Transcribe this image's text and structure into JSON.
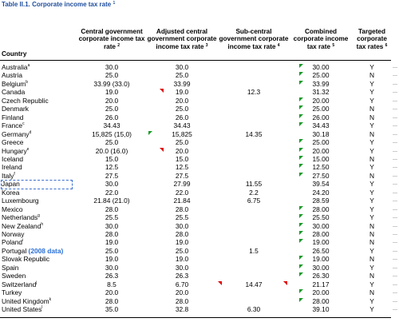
{
  "title": {
    "text": "Table II.1. Corporate income tax rate",
    "note": "1"
  },
  "columns": [
    {
      "text": "Country"
    },
    {
      "text": "Central government corporate income tax rate",
      "note": "2"
    },
    {
      "text": "Adjusted central government corporate income tax rate",
      "note": "3"
    },
    {
      "text": "Sub-central government corporate income tax rate",
      "note": "4"
    },
    {
      "text": "Combined corporate income tax rate",
      "note": "5"
    },
    {
      "text": "Targeted corporate tax rates",
      "note": "6"
    }
  ],
  "rows": [
    {
      "country": "Australia",
      "note": "a",
      "central": "30.0",
      "adjusted": "30.0",
      "combined": "30.00",
      "targeted": "Y"
    },
    {
      "country": "Austria",
      "central": "25.0",
      "adjusted": "25.0",
      "combined": "25.00",
      "targeted": "N"
    },
    {
      "country": "Belgium",
      "note": "b",
      "central": "33.99 (33.0)",
      "adjusted": "33.99",
      "combined": "33.99",
      "targeted": "Y"
    },
    {
      "country": "Canada",
      "central": "19.0",
      "adjusted": "19.0",
      "sub_central": "12.3",
      "combined": "31.32",
      "targeted": "Y"
    },
    {
      "country": "Czech Republic",
      "central": "20.0",
      "adjusted": "20.0",
      "combined": "20.00",
      "targeted": "Y"
    },
    {
      "country": "Denmark",
      "central": "25.0",
      "adjusted": "25.0",
      "combined": "25.00",
      "targeted": "N"
    },
    {
      "country": "Finland",
      "central": "26.0",
      "adjusted": "26.0",
      "combined": "26.00",
      "targeted": "N"
    },
    {
      "country": "France",
      "note": "c",
      "central": "34.43",
      "adjusted": "34.43",
      "combined": "34.43",
      "targeted": "Y"
    },
    {
      "country": "Germany",
      "note": "d",
      "central": "15,825 (15,0)",
      "adjusted": "15,825",
      "sub_central": "14.35",
      "combined": "30.18",
      "targeted": "N"
    },
    {
      "country": "Greece",
      "central": "25.0",
      "adjusted": "25.0",
      "combined": "25.00",
      "targeted": "Y"
    },
    {
      "country": "Hungary",
      "note": "e",
      "central": "20.0 (16.0)",
      "adjusted": "20.0",
      "combined": "20.00",
      "targeted": "Y"
    },
    {
      "country": "Iceland",
      "central": "15.0",
      "adjusted": "15.0",
      "combined": "15.00",
      "targeted": "N"
    },
    {
      "country": "Ireland",
      "central": "12.5",
      "adjusted": "12.5",
      "combined": "12.50",
      "targeted": "Y"
    },
    {
      "country": "Italy",
      "note": "f",
      "central": "27.5",
      "adjusted": "27.5",
      "combined": "27.50",
      "targeted": "N"
    },
    {
      "country": "Japan",
      "central": "30.0",
      "adjusted": "27.99",
      "sub_central": "11.55",
      "combined": "39.54",
      "targeted": "Y"
    },
    {
      "country": "Korea",
      "central": "22.0",
      "adjusted": "22.0",
      "sub_central": "2.2",
      "combined": "24.20",
      "targeted": "Y"
    },
    {
      "country": "Luxembourg",
      "central": "21.84 (21.0)",
      "adjusted": "21.84",
      "sub_central": "6.75",
      "combined": "28.59",
      "targeted": "Y"
    },
    {
      "country": "Mexico",
      "central": "28.0",
      "adjusted": "28.0",
      "combined": "28.00",
      "targeted": "Y"
    },
    {
      "country": "Netherlands",
      "note": "g",
      "central": "25.5",
      "adjusted": "25.5",
      "combined": "25.50",
      "targeted": "Y"
    },
    {
      "country": "New Zealand",
      "note": "h",
      "central": "30.0",
      "adjusted": "30.0",
      "combined": "30.00",
      "targeted": "N"
    },
    {
      "country": "Norway",
      "central": "28.0",
      "adjusted": "28.0",
      "combined": "28.00",
      "targeted": "N"
    },
    {
      "country": "Poland",
      "note": "i",
      "central": "19.0",
      "adjusted": "19.0",
      "combined": "19.00",
      "targeted": "N"
    },
    {
      "country": "Portugal",
      "country_note": "(2008 data)",
      "central": "25.0",
      "adjusted": "25.0",
      "sub_central": "1.5",
      "combined": "26.50",
      "targeted": "Y"
    },
    {
      "country": "Slovak Republic",
      "central": "19.0",
      "adjusted": "19.0",
      "combined": "19.00",
      "targeted": "N"
    },
    {
      "country": "Spain",
      "central": "30.0",
      "adjusted": "30.0",
      "combined": "30.00",
      "targeted": "Y"
    },
    {
      "country": "Sweden",
      "central": "26.3",
      "adjusted": "26.3",
      "combined": "26.30",
      "targeted": "N"
    },
    {
      "country": "Switzerland",
      "note": "j",
      "central": "8.5",
      "adjusted": "6.70",
      "sub_central": "14.47",
      "combined": "21.17",
      "targeted": "Y"
    },
    {
      "country": "Turkey",
      "central": "20.0",
      "adjusted": "20.0",
      "combined": "20.00",
      "targeted": "N"
    },
    {
      "country": "United Kingdom",
      "note": "k",
      "central": "28.0",
      "adjusted": "28.0",
      "combined": "28.00",
      "targeted": "Y"
    },
    {
      "country": "United States",
      "note": "l",
      "central": "35.0",
      "adjusted": "32.8",
      "sub_central": "6.30",
      "combined": "39.10",
      "targeted": "Y"
    }
  ]
}
